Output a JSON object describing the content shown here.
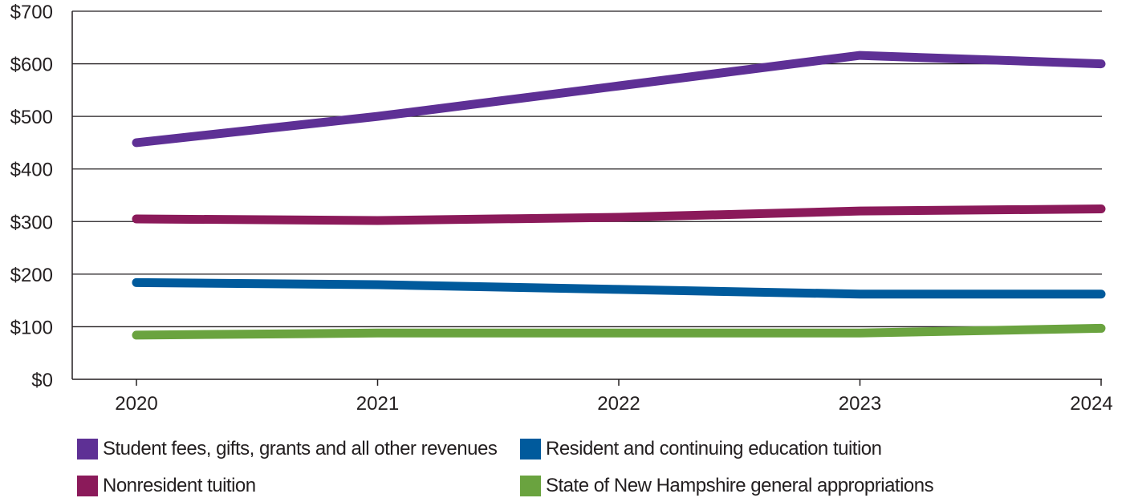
{
  "chart_data": {
    "type": "line",
    "title": "",
    "xlabel": "",
    "ylabel": "",
    "categories": [
      "2020",
      "2021",
      "2022",
      "2023",
      "2024"
    ],
    "ylim": [
      0,
      700
    ],
    "yticks": [
      0,
      100,
      200,
      300,
      400,
      500,
      600,
      700
    ],
    "ytick_labels": [
      "$0",
      "$100",
      "$200",
      "$300",
      "$400",
      "$500",
      "$600",
      "$700"
    ],
    "grid": true,
    "legend_position": "bottom",
    "series": [
      {
        "name": "Student fees, gifts, grants and all other revenues",
        "color": "#5e3095",
        "values": [
          450,
          500,
          558,
          616,
          600
        ]
      },
      {
        "name": "Resident and continuing education tuition",
        "color": "#005a9c",
        "values": [
          184,
          180,
          171,
          162,
          162
        ]
      },
      {
        "name": "Nonresident tuition",
        "color": "#8b1a5a",
        "values": [
          305,
          302,
          308,
          320,
          324
        ]
      },
      {
        "name": "State of New Hampshire general appropriations",
        "color": "#6aa33f",
        "values": [
          84,
          88,
          88,
          88,
          97
        ]
      }
    ]
  }
}
